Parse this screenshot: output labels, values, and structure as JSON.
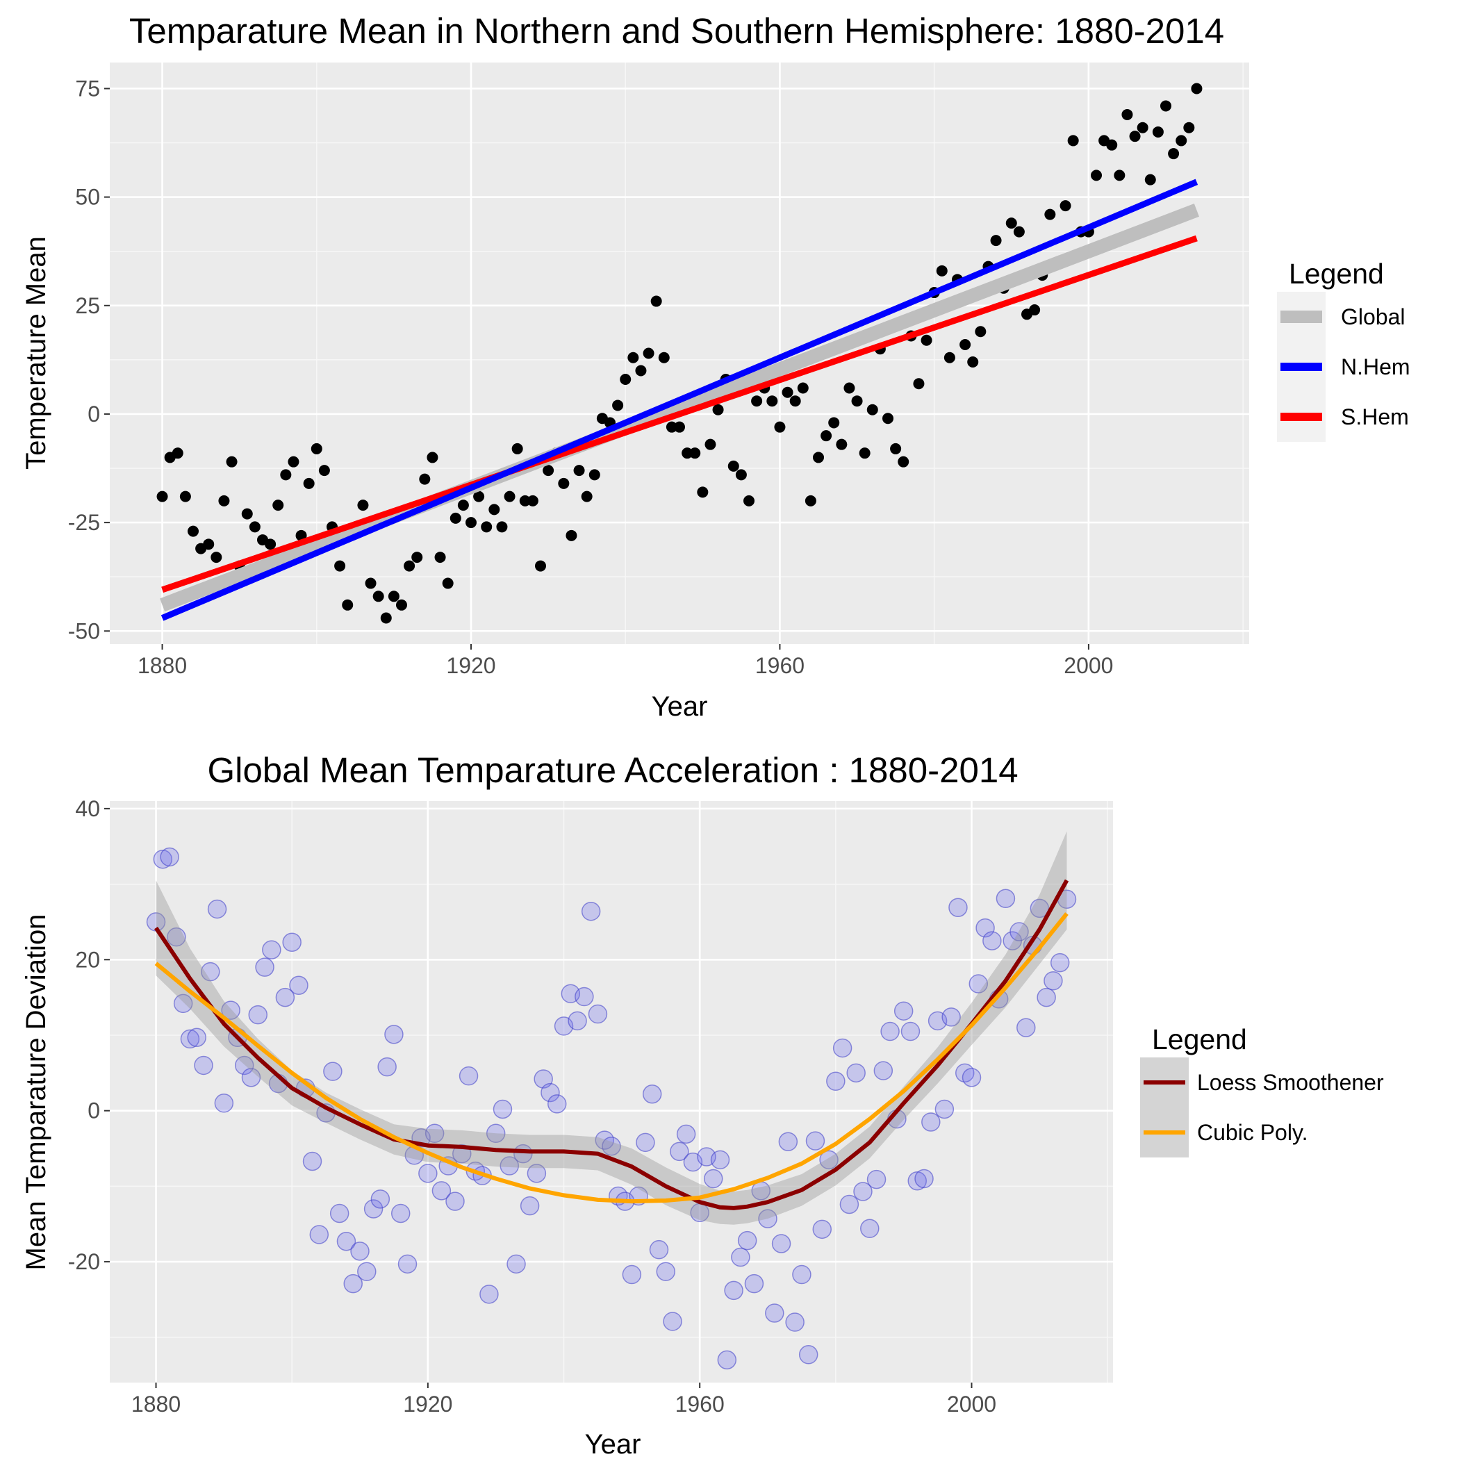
{
  "chart_data": [
    {
      "type": "scatter",
      "title": "Temparature Mean in Northern and Southern Hemisphere: 1880-2014",
      "xlabel": "Year",
      "ylabel": "Temperature Mean",
      "xlim": [
        1873.2,
        2020.8
      ],
      "ylim": [
        -53,
        81
      ],
      "x_ticks": [
        1880,
        1920,
        1960,
        2000
      ],
      "y_ticks": [
        -50,
        -25,
        0,
        25,
        50,
        75
      ],
      "grid": true,
      "legend": {
        "title": "Legend",
        "position": "right",
        "entries": [
          "Global",
          "N.Hem",
          "S.Hem"
        ]
      },
      "colors": {
        "Global": "#bebebe",
        "N.Hem": "#0000ff",
        "S.Hem": "#ff0000",
        "points": "#000000"
      },
      "points": {
        "x": [
          1880,
          1881,
          1882,
          1883,
          1884,
          1885,
          1886,
          1887,
          1888,
          1889,
          1890,
          1891,
          1892,
          1893,
          1894,
          1895,
          1896,
          1897,
          1898,
          1899,
          1900,
          1901,
          1902,
          1903,
          1904,
          1905,
          1906,
          1907,
          1908,
          1909,
          1910,
          1911,
          1912,
          1913,
          1914,
          1915,
          1916,
          1917,
          1918,
          1919,
          1920,
          1921,
          1922,
          1923,
          1924,
          1925,
          1926,
          1927,
          1928,
          1929,
          1930,
          1931,
          1932,
          1933,
          1934,
          1935,
          1936,
          1937,
          1938,
          1939,
          1940,
          1941,
          1942,
          1943,
          1944,
          1945,
          1946,
          1947,
          1948,
          1949,
          1950,
          1951,
          1952,
          1953,
          1954,
          1955,
          1956,
          1957,
          1958,
          1959,
          1960,
          1961,
          1962,
          1963,
          1964,
          1965,
          1966,
          1967,
          1968,
          1969,
          1970,
          1971,
          1972,
          1973,
          1974,
          1975,
          1976,
          1977,
          1978,
          1979,
          1980,
          1981,
          1982,
          1983,
          1984,
          1985,
          1986,
          1987,
          1988,
          1989,
          1990,
          1991,
          1992,
          1993,
          1994,
          1995,
          1996,
          1997,
          1998,
          1999,
          2000,
          2001,
          2002,
          2003,
          2004,
          2005,
          2006,
          2007,
          2008,
          2009,
          2010,
          2011,
          2012,
          2013,
          2014
        ],
        "y": [
          -19,
          -10,
          -9,
          -19,
          -27,
          -31,
          -30,
          -33,
          -20,
          -11,
          -35,
          -23,
          -26,
          -29,
          -30,
          -21,
          -14,
          -11,
          -28,
          -16,
          -8,
          -13,
          -26,
          -35,
          -44,
          -27,
          -21,
          -39,
          -42,
          -47,
          -42,
          -44,
          -35,
          -33,
          -15,
          -10,
          -33,
          -39,
          -24,
          -21,
          -25,
          -19,
          -26,
          -22,
          -26,
          -19,
          -8,
          -20,
          -20,
          -35,
          -13,
          -9,
          -16,
          -28,
          -13,
          -19,
          -14,
          -1,
          -2,
          2,
          8,
          13,
          10,
          14,
          26,
          13,
          -3,
          -3,
          -9,
          -9,
          -18,
          -7,
          1,
          8,
          -12,
          -14,
          -20,
          3,
          6,
          3,
          -3,
          5,
          3,
          6,
          -20,
          -10,
          -5,
          -2,
          -7,
          6,
          3,
          -9,
          1,
          15,
          -1,
          -8,
          -11,
          18,
          7,
          17,
          28,
          33,
          13,
          31,
          16,
          12,
          19,
          34,
          40,
          29,
          44,
          42,
          23,
          24,
          32,
          46,
          35,
          48,
          63,
          42,
          42,
          55,
          63,
          62,
          55,
          69,
          64,
          66,
          54,
          65,
          71,
          60,
          63,
          66,
          75
        ]
      },
      "series": [
        {
          "name": "Global",
          "x": [
            1880,
            2014
          ],
          "y": [
            -44,
            47
          ]
        },
        {
          "name": "N.Hem",
          "x": [
            1880,
            2014
          ],
          "y": [
            -47,
            53.5
          ]
        },
        {
          "name": "S.Hem",
          "x": [
            1880,
            2014
          ],
          "y": [
            -40.5,
            40.5
          ]
        }
      ]
    },
    {
      "type": "scatter",
      "title": "Global Mean Temparature Acceleration : 1880-2014",
      "xlabel": "Year",
      "ylabel": "Mean Temparature Deviation",
      "xlim": [
        1873.2,
        2020.8
      ],
      "ylim": [
        -36,
        41
      ],
      "x_ticks": [
        1880,
        1920,
        1960,
        2000
      ],
      "y_ticks": [
        -20,
        0,
        20,
        40
      ],
      "grid": true,
      "legend": {
        "title": "Legend",
        "position": "right",
        "entries": [
          "Loess Smoothener",
          "Cubic Poly."
        ]
      },
      "colors": {
        "Loess Smoothener": "#8b0000",
        "Cubic Poly.": "#ffa500",
        "points": "#7b7bf0",
        "band": "#bdbdbd"
      },
      "points": {
        "x": [
          1880,
          1881,
          1882,
          1883,
          1884,
          1885,
          1886,
          1887,
          1888,
          1889,
          1890,
          1891,
          1892,
          1893,
          1894,
          1895,
          1896,
          1897,
          1898,
          1899,
          1900,
          1901,
          1902,
          1903,
          1904,
          1905,
          1906,
          1907,
          1908,
          1909,
          1910,
          1911,
          1912,
          1913,
          1914,
          1915,
          1916,
          1917,
          1918,
          1919,
          1920,
          1921,
          1922,
          1923,
          1924,
          1925,
          1926,
          1927,
          1928,
          1929,
          1930,
          1931,
          1932,
          1933,
          1934,
          1935,
          1936,
          1937,
          1938,
          1939,
          1940,
          1941,
          1942,
          1943,
          1944,
          1945,
          1946,
          1947,
          1948,
          1949,
          1950,
          1951,
          1952,
          1953,
          1954,
          1955,
          1956,
          1957,
          1958,
          1959,
          1960,
          1961,
          1962,
          1963,
          1964,
          1965,
          1966,
          1967,
          1968,
          1969,
          1970,
          1971,
          1972,
          1973,
          1974,
          1975,
          1976,
          1977,
          1978,
          1979,
          1980,
          1981,
          1982,
          1983,
          1984,
          1985,
          1986,
          1987,
          1988,
          1989,
          1990,
          1991,
          1992,
          1993,
          1994,
          1995,
          1996,
          1997,
          1998,
          1999,
          2000,
          2001,
          2002,
          2003,
          2004,
          2005,
          2006,
          2007,
          2008,
          2009,
          2010,
          2011,
          2012,
          2013,
          2014
        ],
        "y": [
          25,
          33.3,
          33.6,
          23,
          14.2,
          9.5,
          9.7,
          6,
          18.4,
          26.7,
          1,
          13.3,
          9.7,
          6,
          4.4,
          12.7,
          19,
          21.3,
          3.6,
          15,
          22.3,
          16.6,
          3,
          -6.7,
          -16.4,
          -0.3,
          5.2,
          -13.6,
          -17.3,
          -22.9,
          -18.6,
          -21.3,
          -13,
          -11.7,
          5.8,
          10.1,
          -13.6,
          -20.3,
          -5.9,
          -3.6,
          -8.3,
          -3,
          -10.6,
          -7.3,
          -12,
          -5.7,
          4.6,
          -8,
          -8.6,
          -24.3,
          -3,
          0.2,
          -7.3,
          -20.3,
          -5.7,
          -12.6,
          -8.3,
          4.2,
          2.4,
          0.9,
          11.2,
          15.5,
          11.9,
          15.1,
          26.4,
          12.8,
          -3.9,
          -4.7,
          -11.3,
          -12,
          -21.7,
          -11.3,
          -4.2,
          2.2,
          -18.4,
          -21.3,
          -27.9,
          -5.4,
          -3.1,
          -6.8,
          -13.5,
          -6.1,
          -9,
          -6.5,
          -33,
          -23.8,
          -19.4,
          -17.2,
          -22.9,
          -10.6,
          -14.3,
          -26.8,
          -17.6,
          -4.1,
          -28,
          -21.7,
          -32.3,
          -4,
          -15.7,
          -6.5,
          3.9,
          8.3,
          -12.4,
          5,
          -10.7,
          -15.6,
          -9.1,
          5.3,
          10.5,
          -1.1,
          13.2,
          10.5,
          -9.3,
          -9,
          -1.5,
          11.9,
          0.2,
          12.4,
          26.9,
          5,
          4.4,
          16.8,
          24.2,
          22.5,
          14.8,
          28.1,
          22.5,
          23.7,
          11,
          21.9,
          26.8,
          15,
          17.2,
          19.6,
          28
        ]
      },
      "series": [
        {
          "name": "Loess Smoothener",
          "x": [
            1880,
            1885,
            1890,
            1895,
            1900,
            1905,
            1910,
            1915,
            1920,
            1925,
            1930,
            1935,
            1940,
            1945,
            1950,
            1955,
            1960,
            1963,
            1965,
            1967,
            1970,
            1975,
            1980,
            1985,
            1990,
            1995,
            2000,
            2005,
            2010,
            2014
          ],
          "y": [
            24.2,
            17.5,
            11.5,
            7,
            3,
            0.4,
            -1.8,
            -3.8,
            -4.6,
            -4.8,
            -5.2,
            -5.4,
            -5.4,
            -5.7,
            -7.4,
            -10,
            -12.1,
            -12.8,
            -12.9,
            -12.7,
            -12.1,
            -10.5,
            -7.8,
            -4.2,
            1,
            6,
            11.5,
            17.2,
            24,
            30.5
          ],
          "band_upper": [
            30.5,
            21.5,
            14.5,
            9.5,
            5.3,
            2.4,
            0.2,
            -1.8,
            -2.4,
            -2.6,
            -3,
            -3.2,
            -3.2,
            -3.5,
            -5,
            -7.5,
            -9.7,
            -10.6,
            -10.7,
            -10.5,
            -9.9,
            -8.4,
            -5.7,
            -2.1,
            3.2,
            8.4,
            14.3,
            20.7,
            28.6,
            37
          ]
        },
        {
          "name": "Cubic Poly.",
          "x": [
            1880,
            1885,
            1890,
            1895,
            1900,
            1905,
            1910,
            1915,
            1920,
            1925,
            1930,
            1935,
            1940,
            1945,
            1950,
            1955,
            1960,
            1965,
            1970,
            1975,
            1980,
            1985,
            1990,
            1995,
            2000,
            2005,
            2010,
            2014
          ],
          "y": [
            19.5,
            15.8,
            12.3,
            8.6,
            5,
            1.7,
            -1.1,
            -3.5,
            -5.6,
            -7.5,
            -9,
            -10.3,
            -11.2,
            -11.8,
            -12,
            -11.9,
            -11.5,
            -10.4,
            -8.9,
            -7,
            -4.4,
            -1.1,
            2.6,
            6.8,
            11.3,
            16.3,
            21.6,
            26.1
          ]
        }
      ]
    }
  ]
}
